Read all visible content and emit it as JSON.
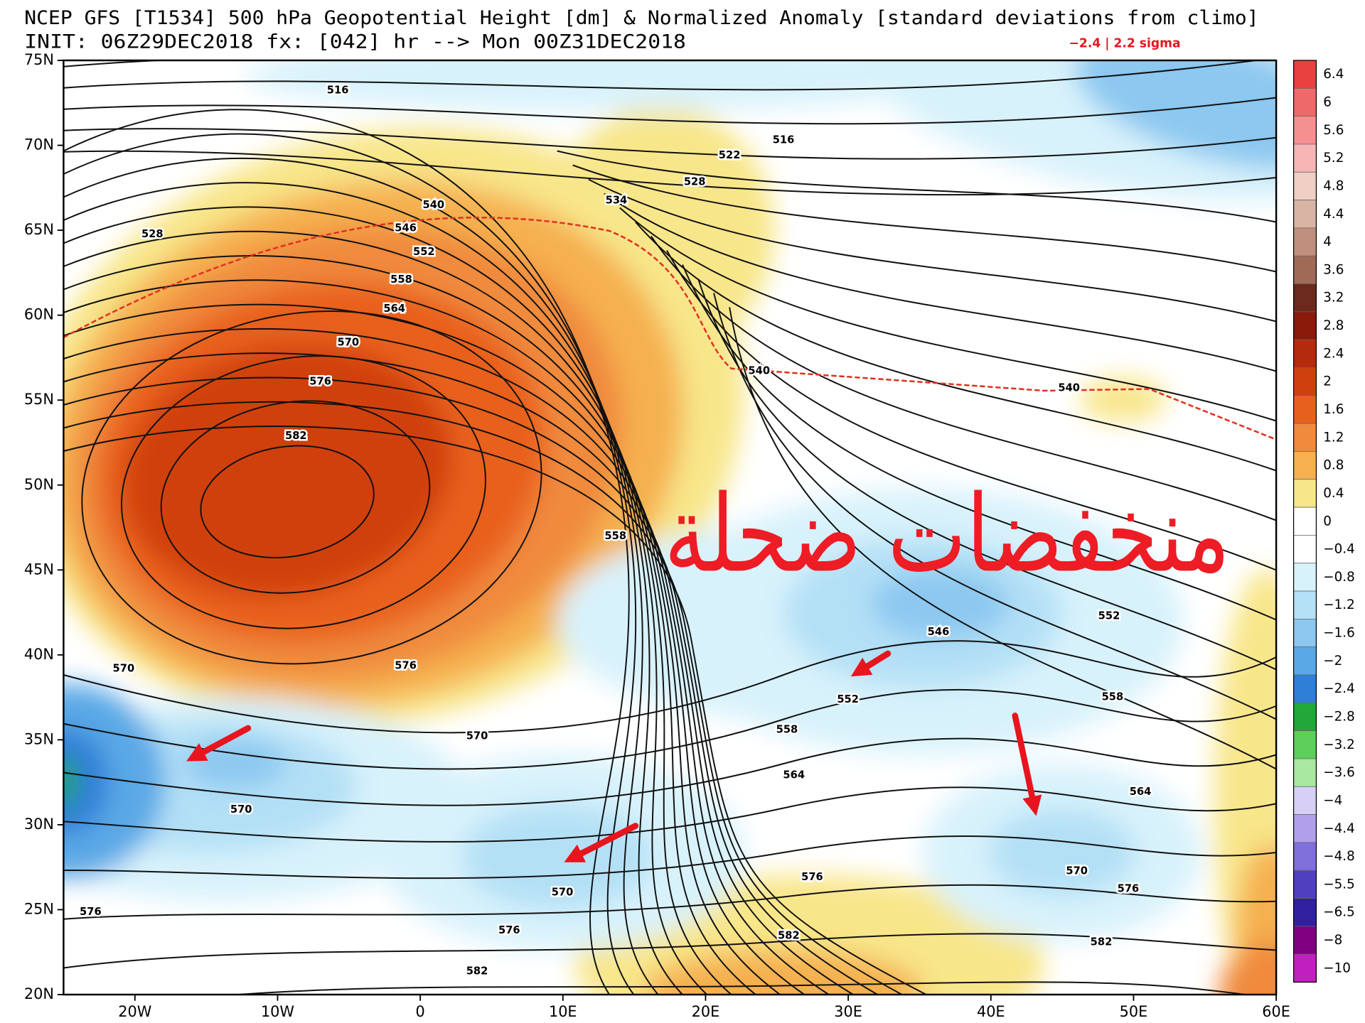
{
  "header": {
    "title": "NCEP GFS [T1534] 500 hPa Geopotential Height [dm] & Normalized Anomaly [standard deviations from climo]",
    "subtitle": "INIT: 06Z29DEC2018 fx: [042] hr --> Mon 00Z31DEC2018",
    "sigma_range": "−2.4 | 2.2 sigma"
  },
  "map": {
    "lat_labels": [
      "75N",
      "70N",
      "65N",
      "60N",
      "55N",
      "50N",
      "45N",
      "40N",
      "35N",
      "30N",
      "25N",
      "20N"
    ],
    "lon_labels": [
      "20W",
      "10W",
      "0",
      "10E",
      "20E",
      "30E",
      "40E",
      "50E",
      "60E"
    ],
    "contour_labels": [
      "516",
      "516",
      "522",
      "528",
      "534",
      "540",
      "546",
      "552",
      "558",
      "564",
      "570",
      "576",
      "582",
      "528",
      "540",
      "540",
      "558",
      "570",
      "576",
      "570",
      "570",
      "576",
      "576",
      "582",
      "570",
      "558",
      "564",
      "552",
      "546",
      "552",
      "558",
      "564",
      "570",
      "576",
      "576",
      "582",
      "582"
    ],
    "annotation": "منخفضات ضحلة"
  },
  "colorbar": {
    "labels": [
      "6.4",
      "6",
      "5.6",
      "5.2",
      "4.8",
      "4.4",
      "4",
      "3.6",
      "3.2",
      "2.8",
      "2.4",
      "2",
      "1.6",
      "1.2",
      "0.8",
      "0.4",
      "0",
      "−0.4",
      "−0.8",
      "−1.2",
      "−1.6",
      "−2",
      "−2.4",
      "−2.8",
      "−3.2",
      "−3.6",
      "−4",
      "−4.4",
      "−4.8",
      "−5.5",
      "−6.5",
      "−8",
      "−10"
    ]
  }
}
